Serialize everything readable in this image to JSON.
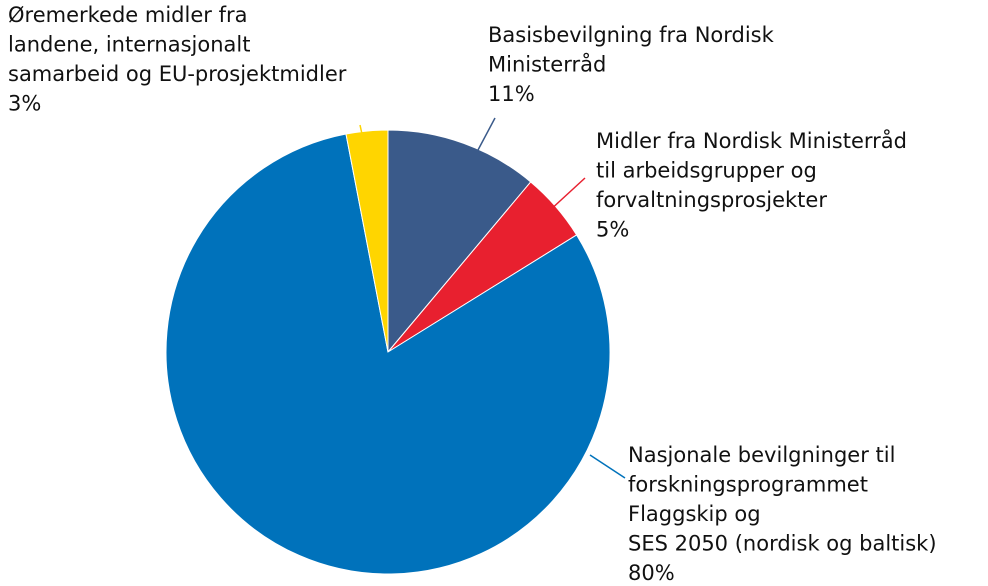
{
  "chart_data": {
    "type": "pie",
    "categories": [
      [
        "Basisbevilgning fra Nordisk",
        "Ministerråd"
      ],
      [
        "Midler fra Nordisk Ministerråd",
        "til arbeidsgrupper og",
        "forvaltningsprosjekter"
      ],
      [
        "Nasjonale bevilgninger til",
        "forskningsprogrammet",
        "Flaggskip og",
        "SES 2050 (nordisk og baltisk)"
      ],
      [
        "Øremerkede midler fra",
        "landene, internasjonalt",
        "samarbeid og EU-prosjektmidler"
      ]
    ],
    "values": [
      11,
      5,
      80,
      3
    ],
    "value_labels": [
      "11%",
      "5%",
      "80%",
      "3%"
    ],
    "colors": [
      "#3a5a8a",
      "#e8202f",
      "#0072bb",
      "#ffd500"
    ]
  }
}
